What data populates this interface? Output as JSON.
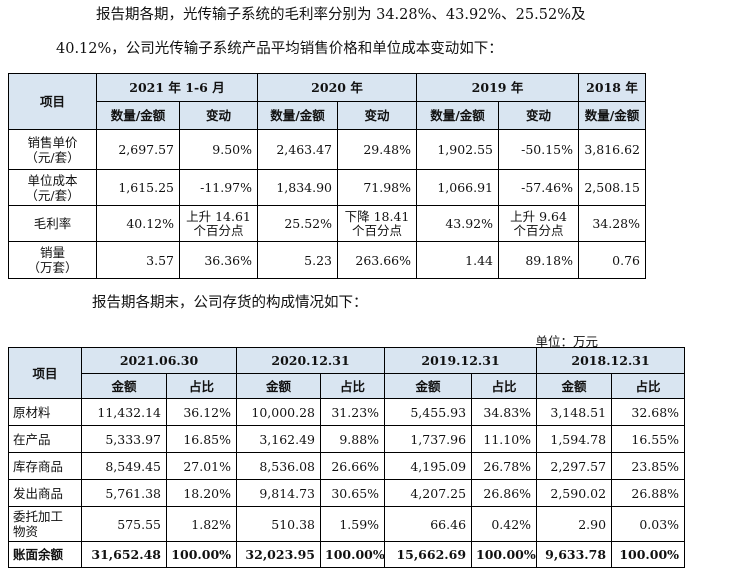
{
  "intro": {
    "line1": "报告期各期，光传输子系统的毛利率分别为 34.28%、43.92%、25.52%及",
    "line2": "40.12%，公司光传输子系统产品平均销售价格和单位成本变动如下："
  },
  "table1": {
    "item_header": "项目",
    "periods": [
      "2021 年 1-6 月",
      "2020 年",
      "2019 年",
      "2018 年"
    ],
    "sub_amount": "数量/金额",
    "sub_change": "变动",
    "rows": [
      {
        "label1": "销售单价",
        "label2": "（元/套）",
        "v1": "2,697.57",
        "c1": "9.50%",
        "v2": "2,463.47",
        "c2": "29.48%",
        "v3": "1,902.55",
        "c3": "-50.15%",
        "v4": "3,816.62"
      },
      {
        "label1": "单位成本",
        "label2": "（元/套）",
        "v1": "1,615.25",
        "c1": "-11.97%",
        "v2": "1,834.90",
        "c2": "71.98%",
        "v3": "1,066.91",
        "c3": "-57.46%",
        "v4": "2,508.15"
      },
      {
        "label1": "毛利率",
        "label2": "",
        "v1": "40.12%",
        "c1a": "上升 14.61",
        "c1b": "个百分点",
        "v2": "25.52%",
        "c2a": "下降 18.41",
        "c2b": "个百分点",
        "v3": "43.92%",
        "c3a": "上升 9.64",
        "c3b": "个百分点",
        "v4": "34.28%"
      },
      {
        "label1": "销量",
        "label2": "（万套）",
        "v1": "3.57",
        "c1": "36.36%",
        "v2": "5.23",
        "c2": "263.66%",
        "v3": "1.44",
        "c3": "89.18%",
        "v4": "0.76"
      }
    ]
  },
  "para2": "报告期各期末，公司存货的构成情况如下：",
  "unit": "单位：万元",
  "table2": {
    "item_header": "项目",
    "periods": [
      "2021.06.30",
      "2020.12.31",
      "2019.12.31",
      "2018.12.31"
    ],
    "sub_amount": "金额",
    "sub_ratio": "占比",
    "rows": [
      {
        "label1": "原材料",
        "label2": "",
        "a1": "11,432.14",
        "r1": "36.12%",
        "a2": "10,000.28",
        "r2": "31.23%",
        "a3": "5,455.93",
        "r3": "34.83%",
        "a4": "3,148.51",
        "r4": "32.68%"
      },
      {
        "label1": "在产品",
        "label2": "",
        "a1": "5,333.97",
        "r1": "16.85%",
        "a2": "3,162.49",
        "r2": "9.88%",
        "a3": "1,737.96",
        "r3": "11.10%",
        "a4": "1,594.78",
        "r4": "16.55%"
      },
      {
        "label1": "库存商品",
        "label2": "",
        "a1": "8,549.45",
        "r1": "27.01%",
        "a2": "8,536.08",
        "r2": "26.66%",
        "a3": "4,195.09",
        "r3": "26.78%",
        "a4": "2,297.57",
        "r4": "23.85%"
      },
      {
        "label1": "发出商品",
        "label2": "",
        "a1": "5,761.38",
        "r1": "18.20%",
        "a2": "9,814.73",
        "r2": "30.65%",
        "a3": "4,207.25",
        "r3": "26.86%",
        "a4": "2,590.02",
        "r4": "26.88%"
      },
      {
        "label1": "委托加工",
        "label2": "物资",
        "a1": "575.55",
        "r1": "1.82%",
        "a2": "510.38",
        "r2": "1.59%",
        "a3": "66.46",
        "r3": "0.42%",
        "a4": "2.90",
        "r4": "0.03%"
      }
    ],
    "total": {
      "label": "账面余额",
      "a1": "31,652.48",
      "r1": "100.00%",
      "a2": "32,023.95",
      "r2": "100.00%",
      "a3": "15,662.69",
      "r3": "100.00%",
      "a4": "9,633.78",
      "r4": "100.00%"
    }
  }
}
